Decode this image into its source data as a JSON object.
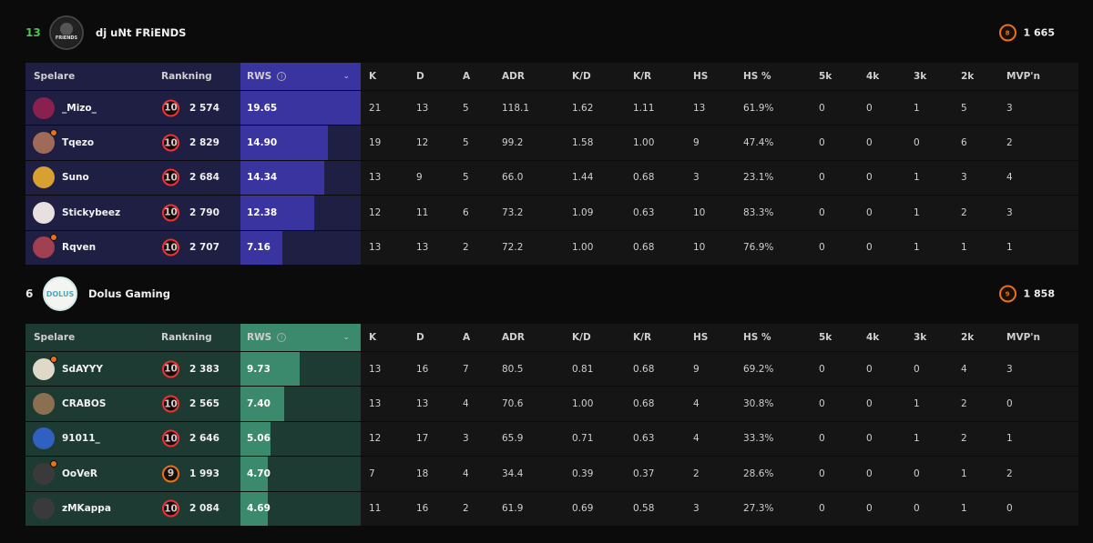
{
  "colors": {
    "team1_row": "#1f1f44",
    "team1_bar": "#3a34a0",
    "team2_row": "#1d3b33",
    "team2_bar": "#3b8a6e",
    "win_score": "#4dc24d"
  },
  "columns": {
    "player": "Spelare",
    "rank": "Rankning",
    "rws": "RWS",
    "k": "K",
    "d": "D",
    "a": "A",
    "adr": "ADR",
    "kd": "K/D",
    "kr": "K/R",
    "hs": "HS",
    "hsp": "HS %",
    "k5": "5k",
    "k4": "4k",
    "k3": "3k",
    "k2": "2k",
    "mvp": "MVP'n"
  },
  "teams": [
    {
      "score": "13",
      "name": "dj uNt FRiENDS",
      "logo_text": "FRiENDS",
      "level": "8",
      "elo": "1 665",
      "players": [
        {
          "name": "_Mizo_",
          "level": "10",
          "elo": "2 574",
          "rws": "19.65",
          "rws_frac": 1.0,
          "k": "21",
          "d": "13",
          "a": "5",
          "adr": "118.1",
          "kd": "1.62",
          "kr": "1.11",
          "hs": "13",
          "hsp": "61.9%",
          "k5": "0",
          "k4": "0",
          "k3": "1",
          "k2": "5",
          "mvp": "3",
          "avatar_color": "#8a2050",
          "dot": false
        },
        {
          "name": "Tqezo",
          "level": "10",
          "elo": "2 829",
          "rws": "14.90",
          "rws_frac": 0.73,
          "k": "19",
          "d": "12",
          "a": "5",
          "adr": "99.2",
          "kd": "1.58",
          "kr": "1.00",
          "hs": "9",
          "hsp": "47.4%",
          "k5": "0",
          "k4": "0",
          "k3": "0",
          "k2": "6",
          "mvp": "2",
          "avatar_color": "#a06a5a",
          "dot": true
        },
        {
          "name": "Suno",
          "level": "10",
          "elo": "2 684",
          "rws": "14.34",
          "rws_frac": 0.7,
          "k": "13",
          "d": "9",
          "a": "5",
          "adr": "66.0",
          "kd": "1.44",
          "kr": "0.68",
          "hs": "3",
          "hsp": "23.1%",
          "k5": "0",
          "k4": "0",
          "k3": "1",
          "k2": "3",
          "mvp": "4",
          "avatar_color": "#d8a030",
          "dot": false
        },
        {
          "name": "Stickybeez",
          "level": "10",
          "elo": "2 790",
          "rws": "12.38",
          "rws_frac": 0.61,
          "k": "12",
          "d": "11",
          "a": "6",
          "adr": "73.2",
          "kd": "1.09",
          "kr": "0.63",
          "hs": "10",
          "hsp": "83.3%",
          "k5": "0",
          "k4": "0",
          "k3": "1",
          "k2": "2",
          "mvp": "3",
          "avatar_color": "#e8e0e0",
          "dot": false
        },
        {
          "name": "Rqven",
          "level": "10",
          "elo": "2 707",
          "rws": "7.16",
          "rws_frac": 0.35,
          "k": "13",
          "d": "13",
          "a": "2",
          "adr": "72.2",
          "kd": "1.00",
          "kr": "0.68",
          "hs": "10",
          "hsp": "76.9%",
          "k5": "0",
          "k4": "0",
          "k3": "1",
          "k2": "1",
          "mvp": "1",
          "avatar_color": "#a04050",
          "dot": true
        }
      ]
    },
    {
      "score": "6",
      "name": "Dolus Gaming",
      "logo_text": "DOLUS",
      "level": "9",
      "elo": "1 858",
      "players": [
        {
          "name": "SdAYYY",
          "level": "10",
          "elo": "2 383",
          "rws": "9.73",
          "rws_frac": 0.49,
          "k": "13",
          "d": "16",
          "a": "7",
          "adr": "80.5",
          "kd": "0.81",
          "kr": "0.68",
          "hs": "9",
          "hsp": "69.2%",
          "k5": "0",
          "k4": "0",
          "k3": "0",
          "k2": "4",
          "mvp": "3",
          "avatar_color": "#e0d8c8",
          "dot": true
        },
        {
          "name": "CRABOS",
          "level": "10",
          "elo": "2 565",
          "rws": "7.40",
          "rws_frac": 0.36,
          "k": "13",
          "d": "13",
          "a": "4",
          "adr": "70.6",
          "kd": "1.00",
          "kr": "0.68",
          "hs": "4",
          "hsp": "30.8%",
          "k5": "0",
          "k4": "0",
          "k3": "1",
          "k2": "2",
          "mvp": "0",
          "avatar_color": "#8a7050",
          "dot": false
        },
        {
          "name": "91011_",
          "level": "10",
          "elo": "2 646",
          "rws": "5.06",
          "rws_frac": 0.25,
          "k": "12",
          "d": "17",
          "a": "3",
          "adr": "65.9",
          "kd": "0.71",
          "kr": "0.63",
          "hs": "4",
          "hsp": "33.3%",
          "k5": "0",
          "k4": "0",
          "k3": "1",
          "k2": "2",
          "mvp": "1",
          "avatar_color": "#3060c0",
          "dot": false
        },
        {
          "name": "OoVeR",
          "level": "9",
          "elo": "1 993",
          "rws": "4.70",
          "rws_frac": 0.23,
          "k": "7",
          "d": "18",
          "a": "4",
          "adr": "34.4",
          "kd": "0.39",
          "kr": "0.37",
          "hs": "2",
          "hsp": "28.6%",
          "k5": "0",
          "k4": "0",
          "k3": "0",
          "k2": "1",
          "mvp": "2",
          "avatar_color": "#3a3a3a",
          "dot": true
        },
        {
          "name": "zMKappa",
          "level": "10",
          "elo": "2 084",
          "rws": "4.69",
          "rws_frac": 0.23,
          "k": "11",
          "d": "16",
          "a": "2",
          "adr": "61.9",
          "kd": "0.69",
          "kr": "0.58",
          "hs": "3",
          "hsp": "27.3%",
          "k5": "0",
          "k4": "0",
          "k3": "0",
          "k2": "1",
          "mvp": "0",
          "avatar_color": "#3a3a3a",
          "dot": false
        }
      ]
    }
  ]
}
